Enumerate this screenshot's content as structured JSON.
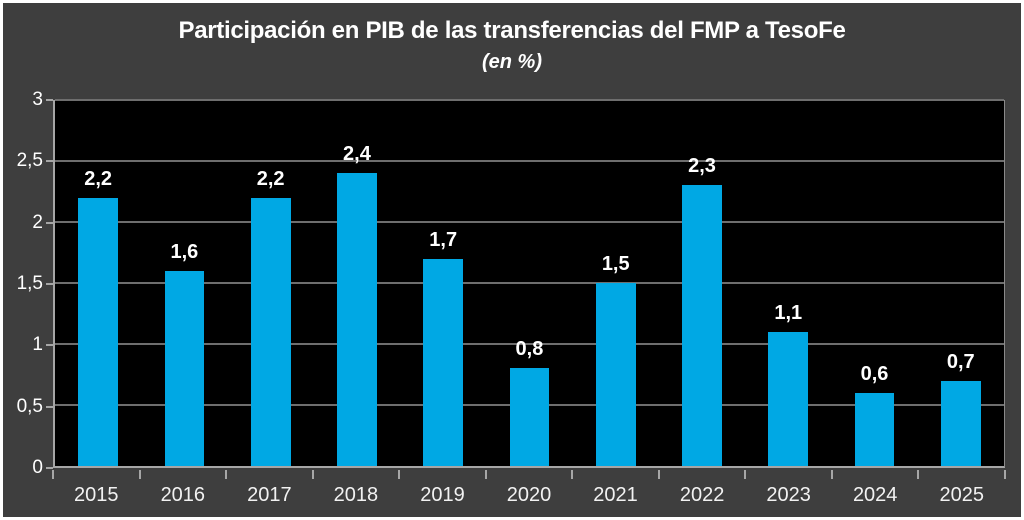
{
  "title": "Participación en PIB de las transferencias del FMP a TesoFe",
  "subtitle": "(en %)",
  "chart_data": {
    "type": "bar",
    "title": "Participación en PIB de las transferencias del FMP a TesoFe",
    "subtitle": "(en %)",
    "categories": [
      "2015",
      "2016",
      "2017",
      "2018",
      "2019",
      "2020",
      "2021",
      "2022",
      "2023",
      "2024",
      "2025"
    ],
    "values": [
      2.2,
      1.6,
      2.2,
      2.4,
      1.7,
      0.8,
      1.5,
      2.3,
      1.1,
      0.6,
      0.7
    ],
    "data_labels": [
      "2,2",
      "1,6",
      "2,2",
      "2,4",
      "1,7",
      "0,8",
      "1,5",
      "2,3",
      "1,1",
      "0,6",
      "0,7"
    ],
    "xlabel": "",
    "ylabel": "",
    "ylim": [
      0,
      3
    ],
    "ytick_step": 0.5,
    "ytick_labels": [
      "3",
      "2,5",
      "2",
      "1,5",
      "1",
      "0,5",
      "0"
    ],
    "grid": true,
    "legend": false,
    "decimal_separator": ",",
    "colors": {
      "bar": "#00A8E4",
      "background": "#3E3E3E",
      "plot_background": "#000000",
      "gridline": "#6E6E6E",
      "axis_line": "#A6A6A6",
      "text": "#FFFFFF",
      "outer_border": "#FFFFFF"
    }
  }
}
